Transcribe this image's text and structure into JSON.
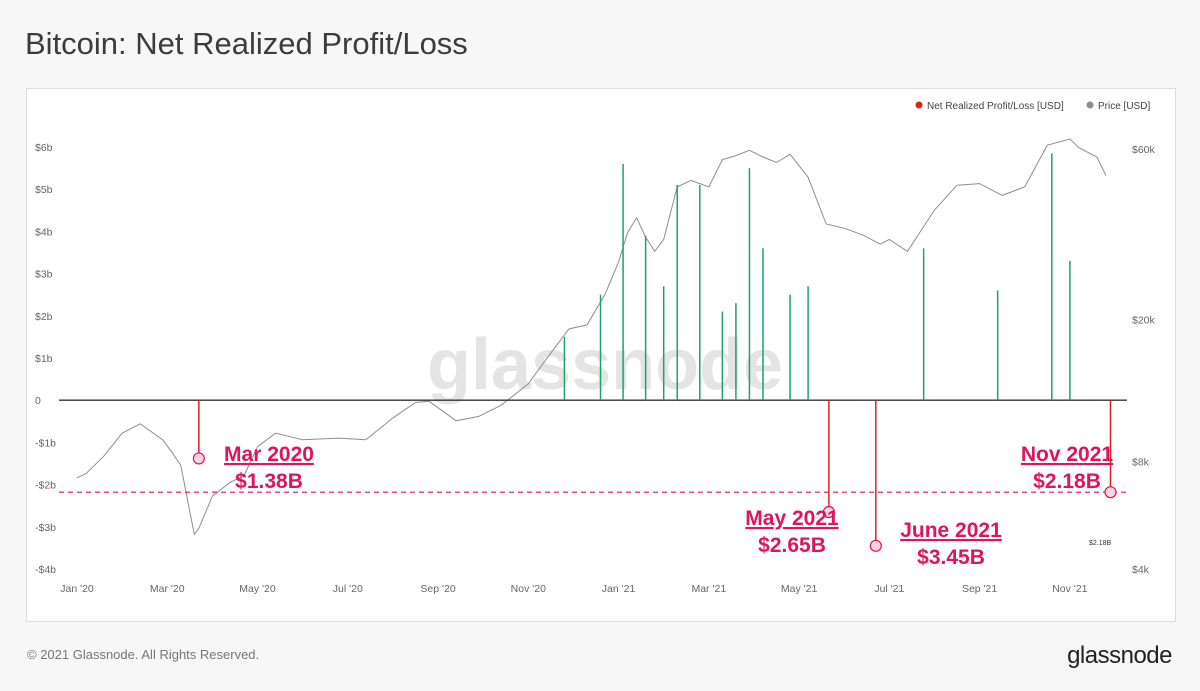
{
  "title": "Bitcoin: Net Realized Profit/Loss",
  "footer": {
    "copyright": "© 2021 Glassnode. All Rights Reserved.",
    "logo": "glassnode"
  },
  "watermark": "glassnode",
  "colors": {
    "profit": "#1aa36f",
    "loss": "#e0201b",
    "price": "#8e8e8e",
    "annotation": "#e2135a",
    "zero": "#333333"
  },
  "chart_data": {
    "type": "line",
    "title": "Bitcoin: Net Realized Profit/Loss",
    "legend": [
      {
        "label": "Net Realized Profit/Loss [USD]",
        "color": "#e0201b"
      },
      {
        "label": "Price [USD]",
        "color": "#8e8e8e"
      }
    ],
    "x_labels": [
      "Jan '20",
      "Mar '20",
      "May '20",
      "Jul '20",
      "Sep '20",
      "Nov '20",
      "Jan '21",
      "Mar '21",
      "May '21",
      "Jul '21",
      "Sep '21",
      "Nov '21"
    ],
    "y_left": {
      "ticks": [
        6,
        5,
        4,
        3,
        2,
        1,
        0,
        -1,
        -2,
        -3,
        -4
      ],
      "labels": [
        "$6b",
        "$5b",
        "$4b",
        "$3b",
        "$2b",
        "$1b",
        "0",
        "-$1b",
        "-$2b",
        "-$3b",
        "-$4b"
      ],
      "range": [
        -4,
        6
      ],
      "unit": "USD billions"
    },
    "y_right": {
      "ticks": [
        60000,
        20000,
        8000,
        4000
      ],
      "labels": [
        "$60k",
        "$20k",
        "$8k",
        "$4k"
      ],
      "scale": "log"
    },
    "price_series": [
      [
        0,
        7200
      ],
      [
        0.1,
        7400
      ],
      [
        0.3,
        8300
      ],
      [
        0.5,
        9600
      ],
      [
        0.7,
        10200
      ],
      [
        0.95,
        9200
      ],
      [
        1.05,
        8500
      ],
      [
        1.15,
        7800
      ],
      [
        1.3,
        5000
      ],
      [
        1.35,
        5200
      ],
      [
        1.5,
        6400
      ],
      [
        1.7,
        7000
      ],
      [
        1.85,
        7300
      ],
      [
        2.0,
        8800
      ],
      [
        2.2,
        9600
      ],
      [
        2.5,
        9200
      ],
      [
        2.9,
        9300
      ],
      [
        3.2,
        9200
      ],
      [
        3.5,
        10600
      ],
      [
        3.75,
        11700
      ],
      [
        3.9,
        11800
      ],
      [
        4.2,
        10400
      ],
      [
        4.45,
        10700
      ],
      [
        4.7,
        11500
      ],
      [
        5.0,
        13200
      ],
      [
        5.2,
        15500
      ],
      [
        5.45,
        18800
      ],
      [
        5.65,
        19300
      ],
      [
        5.85,
        23500
      ],
      [
        6.0,
        29000
      ],
      [
        6.1,
        35000
      ],
      [
        6.2,
        38500
      ],
      [
        6.3,
        34000
      ],
      [
        6.4,
        31000
      ],
      [
        6.5,
        33500
      ],
      [
        6.65,
        47000
      ],
      [
        6.8,
        49000
      ],
      [
        7.0,
        47000
      ],
      [
        7.15,
        56000
      ],
      [
        7.3,
        57500
      ],
      [
        7.45,
        59500
      ],
      [
        7.6,
        57000
      ],
      [
        7.75,
        55000
      ],
      [
        7.9,
        58000
      ],
      [
        8.1,
        50000
      ],
      [
        8.3,
        37000
      ],
      [
        8.5,
        36000
      ],
      [
        8.7,
        34500
      ],
      [
        8.9,
        32500
      ],
      [
        9.0,
        33500
      ],
      [
        9.2,
        31000
      ],
      [
        9.5,
        40500
      ],
      [
        9.75,
        47500
      ],
      [
        10.0,
        48000
      ],
      [
        10.25,
        44500
      ],
      [
        10.5,
        47000
      ],
      [
        10.75,
        61500
      ],
      [
        11.0,
        64000
      ],
      [
        11.1,
        60500
      ],
      [
        11.3,
        57000
      ],
      [
        11.4,
        50500
      ]
    ],
    "npl_spikes_b": [
      [
        1.35,
        -1.38
      ],
      [
        5.4,
        1.5
      ],
      [
        5.8,
        2.5
      ],
      [
        6.05,
        5.6
      ],
      [
        6.3,
        3.9
      ],
      [
        6.5,
        2.7
      ],
      [
        6.65,
        5.1
      ],
      [
        6.9,
        5.1
      ],
      [
        7.15,
        2.1
      ],
      [
        7.3,
        2.3
      ],
      [
        7.45,
        5.5
      ],
      [
        7.6,
        3.6
      ],
      [
        7.9,
        2.5
      ],
      [
        8.1,
        2.7
      ],
      [
        8.33,
        -2.65
      ],
      [
        8.85,
        -3.45
      ],
      [
        9.38,
        3.6
      ],
      [
        10.2,
        2.6
      ],
      [
        10.8,
        5.85
      ],
      [
        11.0,
        3.3
      ],
      [
        11.45,
        -2.18
      ]
    ],
    "annotations": [
      {
        "line1": "Mar 2020",
        "line2": "$1.38B",
        "value": -1.38
      },
      {
        "line1": "May 2021",
        "line2": "$2.65B",
        "value": -2.65
      },
      {
        "line1": "June 2021",
        "line2": "$3.45B",
        "value": -3.45
      },
      {
        "line1": "Nov 2021",
        "line2": "$2.18B",
        "value": -2.18
      }
    ],
    "reference_line": {
      "value": -2.18,
      "label": "$2.18B"
    }
  }
}
